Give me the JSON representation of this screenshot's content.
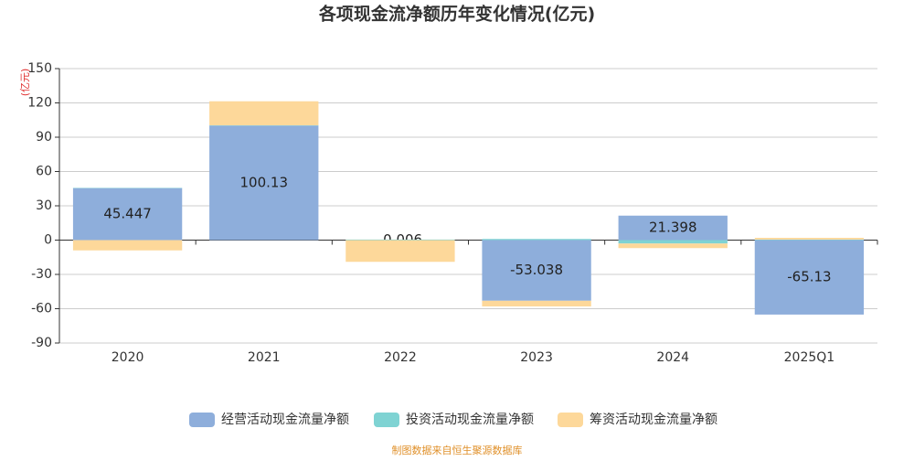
{
  "chart_data": {
    "type": "bar",
    "stacked": true,
    "title": "各项现金流净额历年变化情况(亿元)",
    "y_label": "(亿元)",
    "source": "制图数据来自恒生聚源数据库",
    "categories": [
      "2020",
      "2021",
      "2022",
      "2023",
      "2024",
      "2025Q1"
    ],
    "series": [
      {
        "name": "经营活动现金流量净额",
        "color": "#8eaedb",
        "values": [
          45.447,
          100.13,
          -0.006,
          -53.038,
          21.398,
          -65.13
        ]
      },
      {
        "name": "投资活动现金流量净额",
        "color": "#7fd3d3",
        "values": [
          0.3,
          0.3,
          0.5,
          1,
          -3,
          0.5
        ]
      },
      {
        "name": "筹资活动现金流量净额",
        "color": "#fdd89a",
        "values": [
          -9,
          21,
          -19,
          -5,
          -4,
          1.5
        ]
      }
    ],
    "ylim": [
      -90,
      150
    ],
    "yticks": [
      150,
      120,
      90,
      60,
      30,
      0,
      -30,
      -60,
      -90
    ],
    "grid": true
  }
}
